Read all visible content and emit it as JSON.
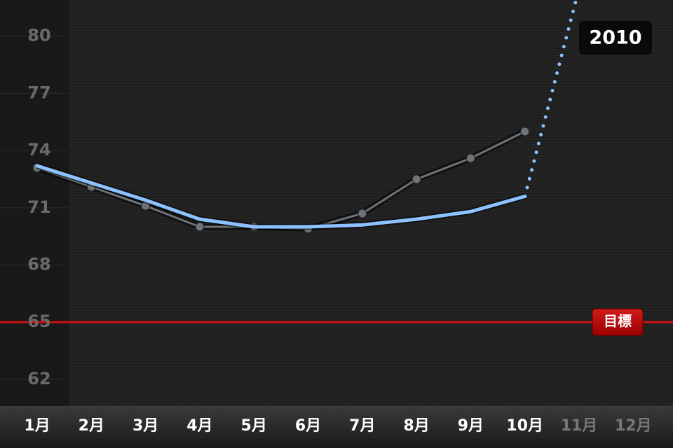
{
  "chart_data": {
    "type": "line",
    "year_label": "2010",
    "categories": [
      "1月",
      "2月",
      "3月",
      "4月",
      "5月",
      "6月",
      "7月",
      "8月",
      "9月",
      "10月",
      "11月",
      "12月"
    ],
    "series": [
      {
        "color": "#6e7377",
        "values": [
          73.1,
          72.1,
          71.1,
          70.0,
          70.0,
          69.9,
          70.7,
          72.5,
          73.6,
          75.0,
          null,
          null
        ],
        "markers": true
      },
      {
        "color": "#8cc2ff",
        "values": [
          73.2,
          72.3,
          71.4,
          70.4,
          70.0,
          70.0,
          70.1,
          70.4,
          70.8,
          71.6,
          null,
          null
        ]
      },
      {
        "color": "#8cc2ff",
        "values": [
          null,
          null,
          null,
          null,
          null,
          null,
          null,
          null,
          null,
          71.6,
          82.5,
          null
        ],
        "dotted": true
      }
    ],
    "goal": {
      "value": 65,
      "label": "目標",
      "color": "#cc1111"
    },
    "ylim": [
      60.6,
      81.9
    ],
    "yticks": [
      62,
      65,
      68,
      71,
      74,
      77,
      80
    ]
  }
}
